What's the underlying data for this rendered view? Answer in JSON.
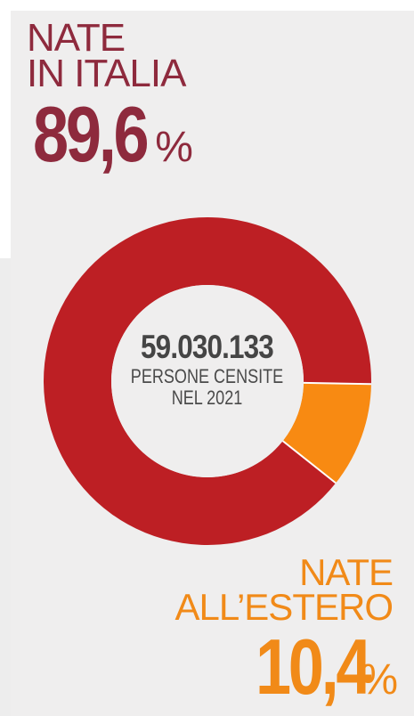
{
  "colors": {
    "italia": "#bd1f24",
    "estero": "#f88a12",
    "labelItalia": "#8e2a3d",
    "labelEstero": "#f18a18",
    "panel": "#efeeee"
  },
  "labels": {
    "italia": "NATE\nIN ITALIA",
    "italia_pct_number": "89,6",
    "italia_pct_symbol": "%",
    "estero": "NATE\nALL’ESTERO",
    "estero_pct_number": "10,4",
    "estero_pct_symbol": "%",
    "center_total": "59.030.133",
    "center_caption": "PERSONE CENSITE\nNEL 2021"
  },
  "chart_data": {
    "type": "pie",
    "variant": "donut",
    "title": "",
    "categories": [
      "NATE IN ITALIA",
      "NATE ALL’ESTERO"
    ],
    "values": [
      89.6,
      10.4
    ],
    "unit": "%",
    "total_label": "59.030.133",
    "total_caption": "PERSONE CENSITE NEL 2021",
    "grid": false,
    "legend": "none"
  }
}
